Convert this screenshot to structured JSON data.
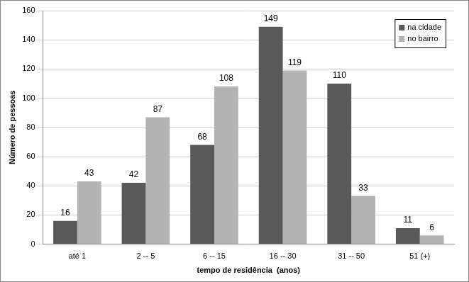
{
  "chart_data": {
    "type": "bar",
    "categories": [
      "até 1",
      "2 -- 5",
      "6 -- 15",
      "16 -- 30",
      "31 -- 50",
      "51 (+)"
    ],
    "series": [
      {
        "name": "na cidade",
        "color": "#595959",
        "values": [
          16,
          42,
          68,
          149,
          110,
          11
        ]
      },
      {
        "name": "no bairro",
        "color": "#b3b3b3",
        "values": [
          43,
          87,
          108,
          119,
          33,
          6
        ]
      }
    ],
    "x_label": "tempo de residência  (anos)",
    "y_label": "Número de pessoas",
    "ylim": [
      0,
      160
    ],
    "yticks": [
      0,
      20,
      40,
      60,
      80,
      100,
      120,
      140,
      160
    ],
    "grid": true,
    "legend": "upper right",
    "data_labels": true
  }
}
